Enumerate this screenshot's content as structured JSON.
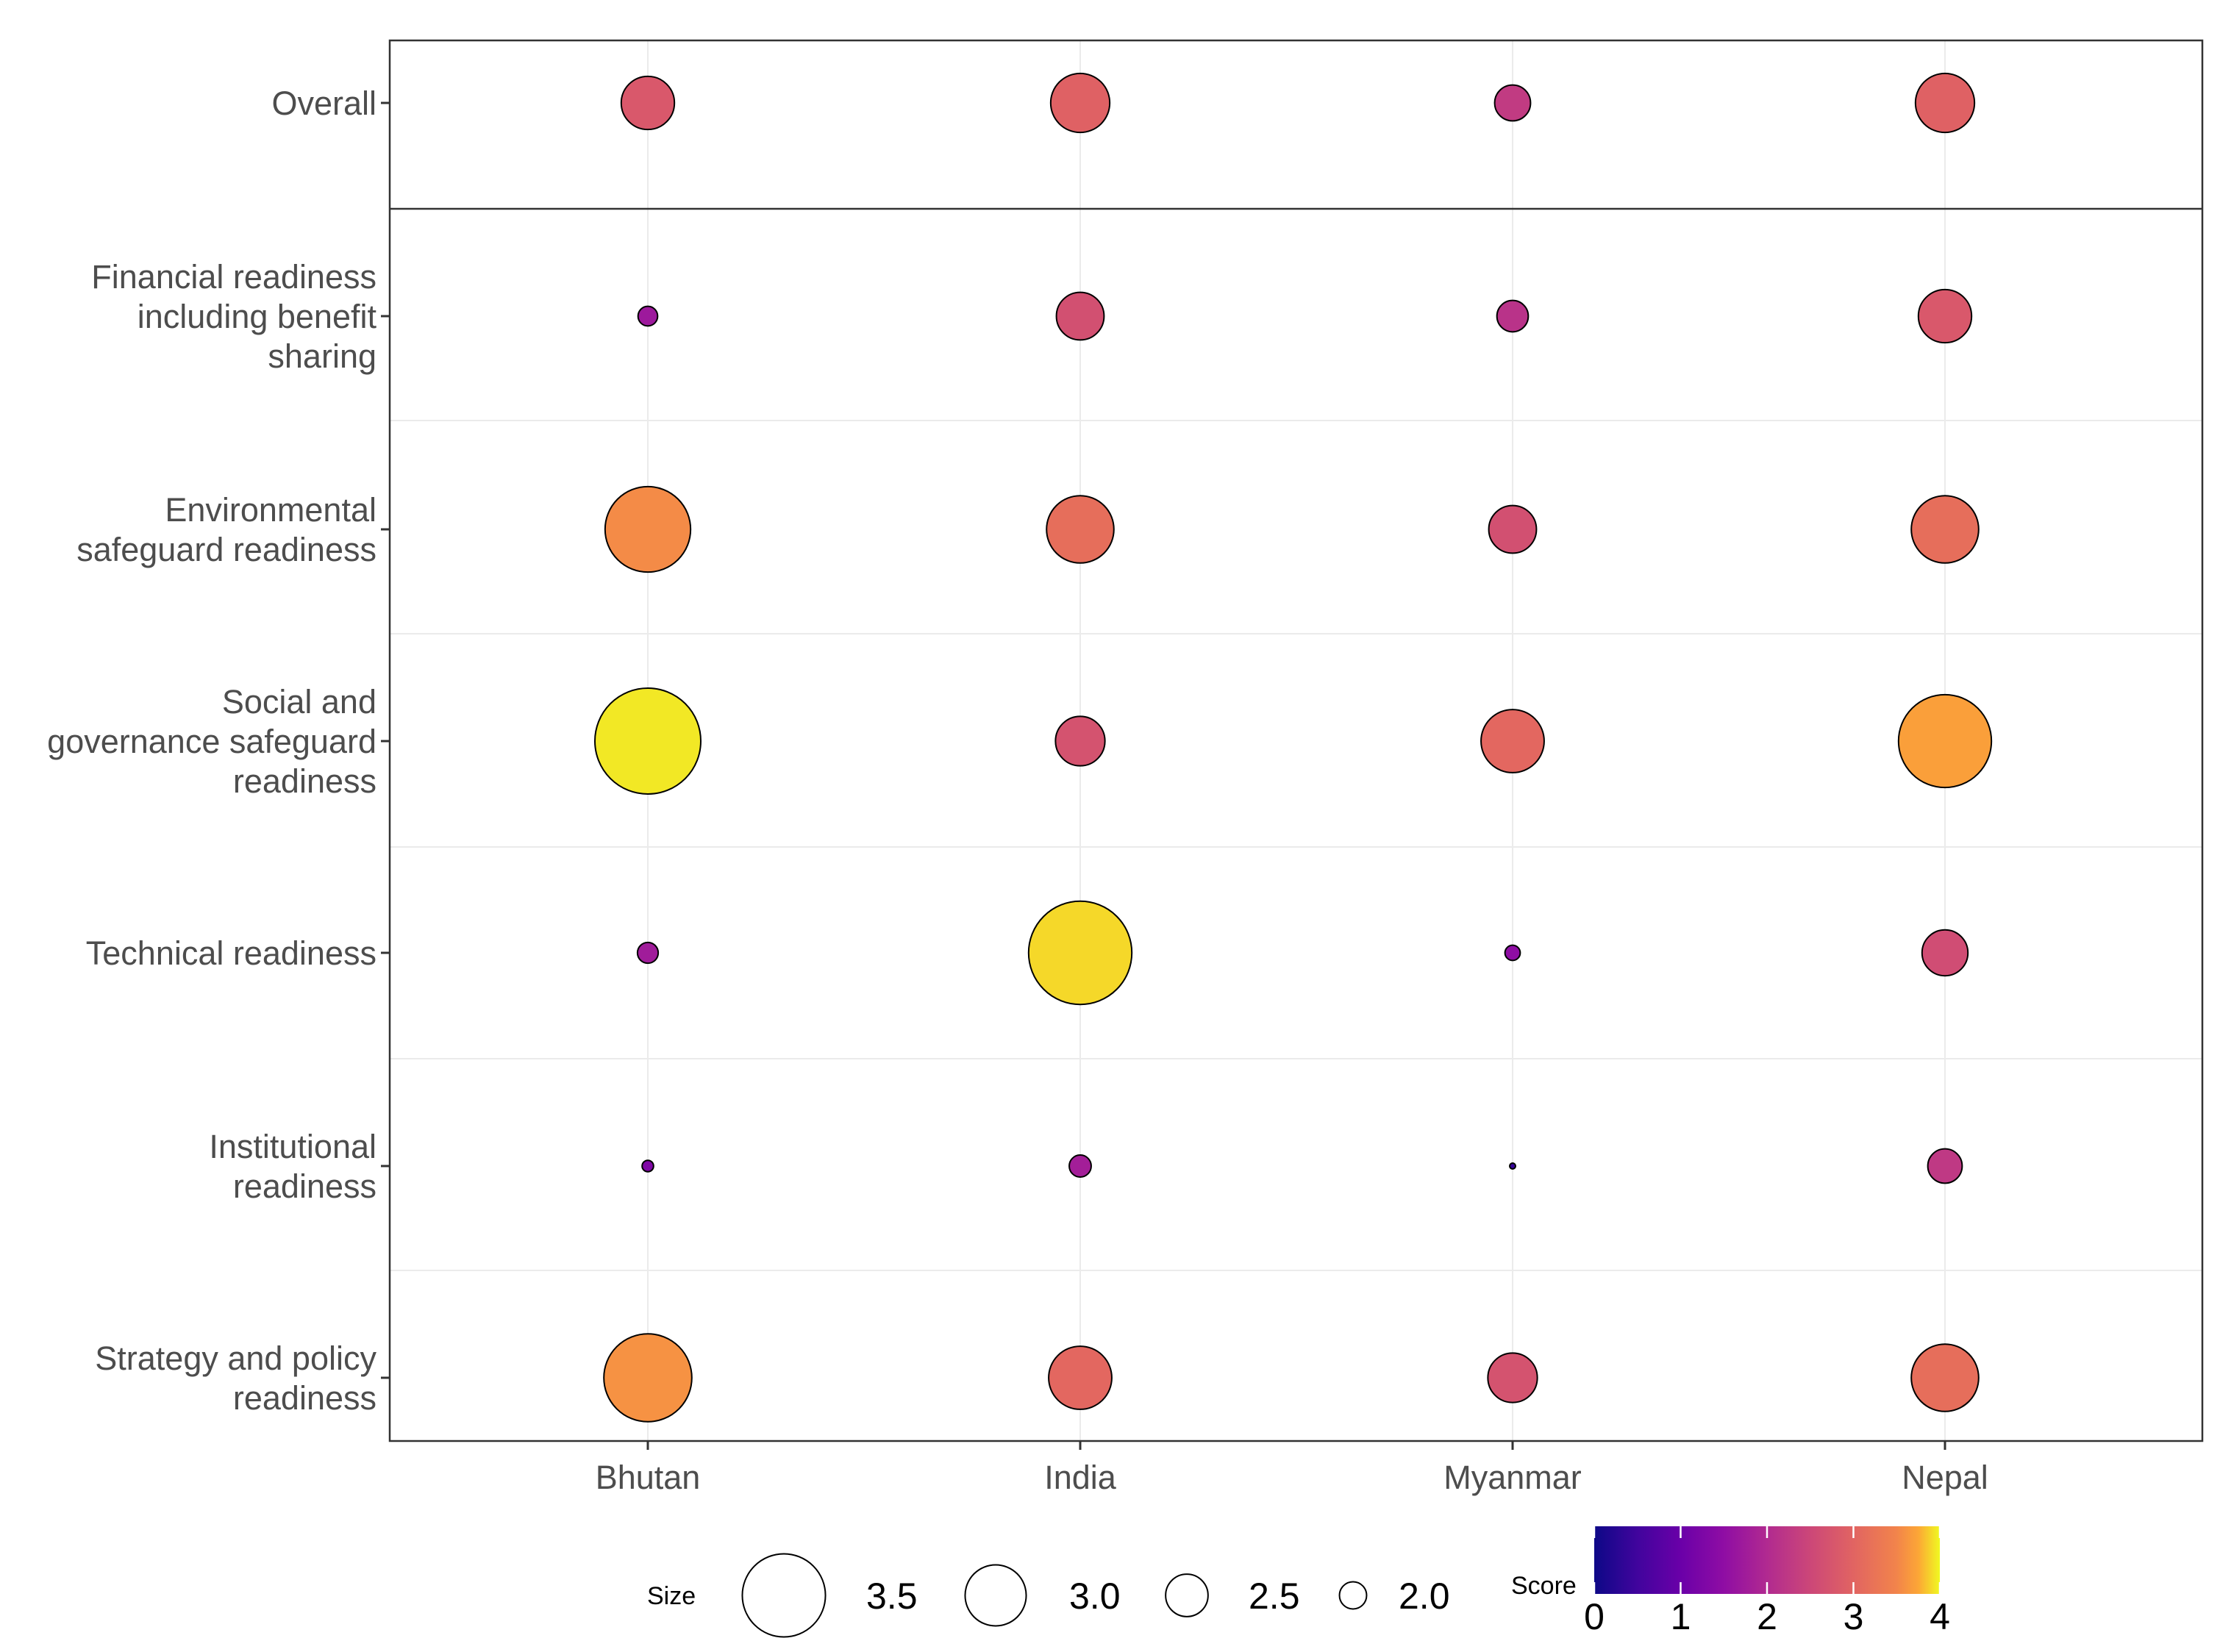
{
  "chart_data": {
    "type": "bubble",
    "countries": [
      "Bhutan",
      "India",
      "Myanmar",
      "Nepal"
    ],
    "rows": [
      {
        "label": [
          "Overall"
        ],
        "values": [
          2.8,
          2.95,
          2.3,
          2.95
        ]
      },
      {
        "label": [
          "Financial readiness",
          "including benefit",
          "sharing"
        ],
        "values": [
          1.7,
          2.65,
          2.15,
          2.8
        ]
      },
      {
        "label": [
          "Environmental",
          "safeguard readiness"
        ],
        "values": [
          3.55,
          3.15,
          2.65,
          3.15
        ]
      },
      {
        "label": [
          "Social and",
          "governance safeguard",
          "readiness"
        ],
        "values": [
          3.95,
          2.7,
          3.05,
          3.7
        ]
      },
      {
        "label": [
          "Technical readiness"
        ],
        "values": [
          1.75,
          3.9,
          1.5,
          2.6
        ]
      },
      {
        "label": [
          "Institutional",
          "readiness"
        ],
        "values": [
          1.3,
          1.8,
          0.4,
          2.25
        ]
      },
      {
        "label": [
          "Strategy and policy",
          "readiness"
        ],
        "values": [
          3.6,
          3.05,
          2.7,
          3.15
        ]
      }
    ],
    "size_legend": {
      "title": "Size",
      "breaks": [
        3.5,
        3.0,
        2.5,
        2.0
      ]
    },
    "color_legend": {
      "title": "Score",
      "min": 0,
      "max": 4,
      "ticks": [
        0,
        1,
        2,
        3,
        4
      ],
      "palette": "plasma"
    }
  }
}
